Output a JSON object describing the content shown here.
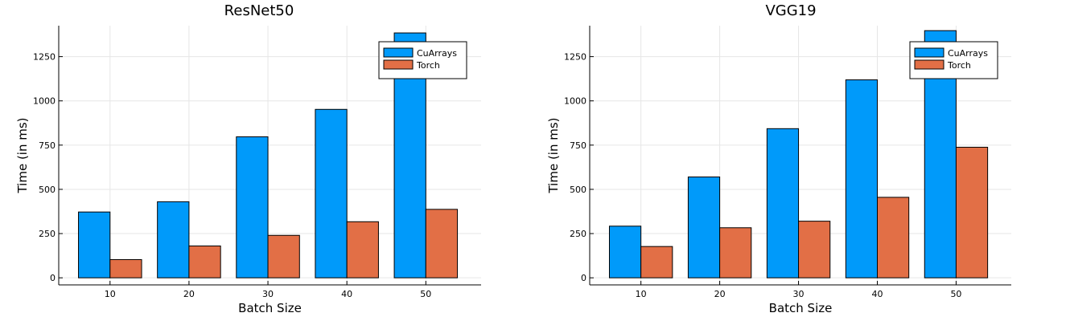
{
  "colors": {
    "CuArrays": "#009AFA",
    "Torch": "#E26F46"
  },
  "chart_data": [
    {
      "type": "bar",
      "title": "ResNet50",
      "xlabel": "Batch Size",
      "ylabel": "Time (in ms)",
      "categories": [
        "10",
        "20",
        "30",
        "40",
        "50"
      ],
      "yticks": [
        0,
        250,
        500,
        750,
        1000,
        1250
      ],
      "ylim": [
        -40,
        1425
      ],
      "grid": true,
      "legend_position": "top-right",
      "series": [
        {
          "name": "CuArrays",
          "values": [
            372,
            430,
            797,
            952,
            1384
          ]
        },
        {
          "name": "Torch",
          "values": [
            103,
            180,
            240,
            317,
            387
          ]
        }
      ]
    },
    {
      "type": "bar",
      "title": "VGG19",
      "xlabel": "Batch Size",
      "ylabel": "Time (in ms)",
      "categories": [
        "10",
        "20",
        "30",
        "40",
        "50"
      ],
      "yticks": [
        0,
        250,
        500,
        750,
        1000,
        1250
      ],
      "ylim": [
        -40,
        1425
      ],
      "grid": true,
      "legend_position": "top-right",
      "series": [
        {
          "name": "CuArrays",
          "values": [
            292,
            570,
            843,
            1119,
            1397
          ]
        },
        {
          "name": "Torch",
          "values": [
            177,
            283,
            320,
            455,
            738
          ]
        }
      ]
    }
  ]
}
